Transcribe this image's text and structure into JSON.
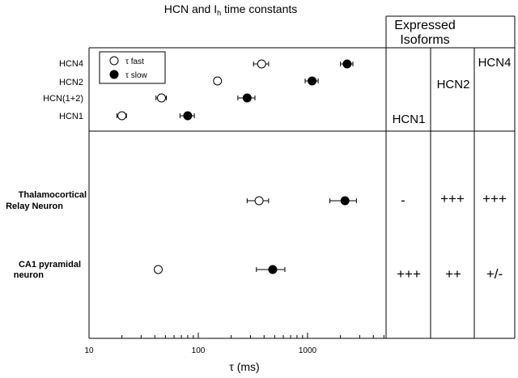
{
  "chart_data": {
    "type": "scatter",
    "title": "HCN and I",
    "title_sub": "h",
    "title_rest": " time constants",
    "xlabel": "τ  (ms)",
    "xscale": "log",
    "xlim": [
      10,
      5000
    ],
    "xticks": [
      {
        "value": 10,
        "label": "10"
      },
      {
        "value": 100,
        "label": "100"
      },
      {
        "value": 1000,
        "label": "1000"
      }
    ],
    "legend": {
      "placement": "top-left",
      "entries": [
        {
          "label": "τ fast",
          "marker": "open-circle"
        },
        {
          "label": "τ slow",
          "marker": "filled-circle"
        }
      ]
    },
    "panels": {
      "top": {
        "categories": [
          "HCN4",
          "HCN2",
          "HCN(1+2)",
          "HCN1"
        ],
        "rows": [
          {
            "fast": 380,
            "fast_err": 60,
            "slow": 2300,
            "slow_err": 300
          },
          {
            "fast": 150,
            "fast_err": 0,
            "slow": 1100,
            "slow_err": 150
          },
          {
            "fast": 46,
            "fast_err": 5,
            "slow": 280,
            "slow_err": 50
          },
          {
            "fast": 20,
            "fast_err": 2,
            "slow": 80,
            "slow_err": 12
          }
        ]
      },
      "bottom": {
        "categories": [
          "Thalamocortical\nRelay Neuron",
          "CA1 pyramidal\nneuron"
        ],
        "labels_line1": [
          "Thalamocortical",
          "CA1 pyramidal"
        ],
        "labels_line2": [
          "Relay Neuron",
          "neuron"
        ],
        "rows": [
          {
            "fast": 360,
            "fast_err": 80,
            "slow": 2200,
            "slow_err": 600
          },
          {
            "fast": 43,
            "fast_err": 3,
            "slow": 480,
            "slow_err": 140
          }
        ]
      }
    },
    "isoforms": {
      "title_line1": "Expressed",
      "title_line2": "Isoforms",
      "columns": [
        "HCN1",
        "HCN2",
        "HCN4"
      ],
      "values": [
        [
          "-",
          "+++",
          "+++"
        ],
        [
          "+++",
          "++",
          "+/-"
        ]
      ]
    },
    "grid": false
  }
}
